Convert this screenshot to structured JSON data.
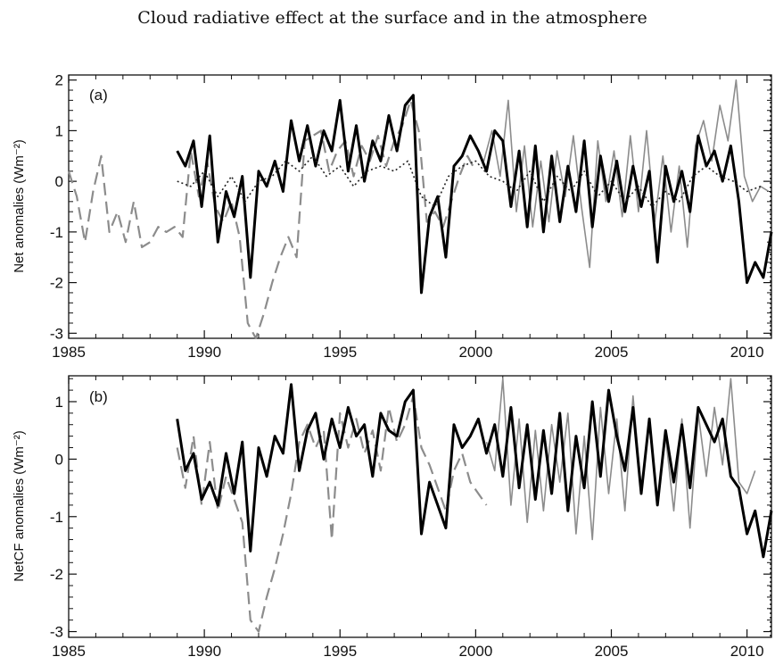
{
  "figure": {
    "title": "Cloud radiative effect at the surface and in the atmosphere"
  },
  "chart_data": [
    {
      "type": "line",
      "panel_label": "(a)",
      "ylabel": "Net anomalies (Wm⁻²)",
      "xlim": [
        1985,
        2010.9
      ],
      "ylim": [
        -3.1,
        2.1
      ],
      "xticks": [
        1985,
        1990,
        1995,
        2000,
        2005,
        2010
      ],
      "yticks": [
        -3,
        -2,
        -1,
        0,
        1,
        2
      ],
      "grid": false,
      "series": [
        {
          "style": "gray-dashed",
          "color": "#8c8c8c",
          "x": [
            1985.0,
            1985.3,
            1985.6,
            1985.9,
            1986.2,
            1986.5,
            1986.8,
            1987.1,
            1987.4,
            1987.7,
            1988.0,
            1988.3,
            1988.6,
            1988.9,
            1989.2,
            1989.5,
            1989.8,
            1990.1,
            1990.4,
            1990.7,
            1991.0,
            1991.3,
            1991.6,
            1991.9,
            1992.2,
            1992.5,
            1992.8,
            1993.1,
            1993.4,
            1993.7,
            1994.0,
            1994.3,
            1994.6,
            1994.9,
            1995.2,
            1995.5,
            1995.8,
            1996.1,
            1996.4,
            1996.7,
            1997.0,
            1997.3,
            1997.6,
            1997.9,
            1998.2,
            1998.5,
            1998.8,
            1999.1,
            1999.4,
            1999.7,
            2000.0
          ],
          "y": [
            0.2,
            -0.3,
            -1.2,
            -0.2,
            0.5,
            -1.0,
            -0.6,
            -1.2,
            -0.4,
            -1.3,
            -1.2,
            -0.9,
            -1.0,
            -0.9,
            -1.1,
            0.6,
            -0.3,
            0.4,
            -0.5,
            -0.8,
            -0.4,
            -1.1,
            -2.8,
            -3.1,
            -2.6,
            -2.0,
            -1.5,
            -1.1,
            -1.5,
            0.8,
            0.9,
            1.0,
            0.2,
            0.6,
            0.8,
            0.1,
            0.7,
            0.4,
            0.9,
            0.3,
            0.8,
            1.1,
            1.6,
            1.0,
            -0.8,
            -0.6,
            -0.9,
            -0.4,
            0.1,
            0.5,
            0.2
          ]
        },
        {
          "style": "gray-thin",
          "color": "#8c8c8c",
          "x": [
            2000.3,
            2000.6,
            2000.9,
            2001.2,
            2001.5,
            2001.8,
            2002.1,
            2002.4,
            2002.7,
            2003.0,
            2003.3,
            2003.6,
            2003.9,
            2004.2,
            2004.5,
            2004.8,
            2005.1,
            2005.4,
            2005.7,
            2006.0,
            2006.3,
            2006.6,
            2006.9,
            2007.2,
            2007.5,
            2007.8,
            2008.1,
            2008.4,
            2008.7,
            2009.0,
            2009.3,
            2009.6,
            2009.9,
            2010.2,
            2010.5,
            2010.8
          ],
          "y": [
            0.4,
            1.0,
            0.1,
            1.6,
            -0.6,
            0.7,
            -0.9,
            0.4,
            -0.8,
            0.6,
            -0.3,
            0.9,
            -0.5,
            -1.7,
            0.8,
            -0.4,
            0.6,
            -0.7,
            0.9,
            -0.6,
            1.0,
            -0.8,
            0.5,
            -1.0,
            0.3,
            -1.3,
            0.7,
            1.2,
            0.4,
            1.5,
            0.8,
            2.0,
            0.1,
            -0.4,
            -0.1,
            -0.2
          ]
        },
        {
          "style": "black-thick",
          "color": "#000000",
          "x": [
            1989.0,
            1989.3,
            1989.6,
            1989.9,
            1990.2,
            1990.5,
            1990.8,
            1991.1,
            1991.4,
            1991.7,
            1992.0,
            1992.3,
            1992.6,
            1992.9,
            1993.2,
            1993.5,
            1993.8,
            1994.1,
            1994.4,
            1994.7,
            1995.0,
            1995.3,
            1995.6,
            1995.9,
            1996.2,
            1996.5,
            1996.8,
            1997.1,
            1997.4,
            1997.7,
            1998.0,
            1998.3,
            1998.6,
            1998.9,
            1999.2,
            1999.5,
            1999.8,
            2000.1,
            2000.4,
            2000.7,
            2001.0,
            2001.3,
            2001.6,
            2001.9,
            2002.2,
            2002.5,
            2002.8,
            2003.1,
            2003.4,
            2003.7,
            2004.0,
            2004.3,
            2004.6,
            2004.9,
            2005.2,
            2005.5,
            2005.8,
            2006.1,
            2006.4,
            2006.7,
            2007.0,
            2007.3,
            2007.6,
            2007.9,
            2008.2,
            2008.5,
            2008.8,
            2009.1,
            2009.4,
            2009.7,
            2010.0,
            2010.3,
            2010.6,
            2010.9
          ],
          "y": [
            0.6,
            0.3,
            0.8,
            -0.5,
            0.9,
            -1.2,
            -0.2,
            -0.7,
            0.1,
            -1.9,
            0.2,
            -0.1,
            0.4,
            -0.2,
            1.2,
            0.4,
            1.1,
            0.3,
            1.0,
            0.6,
            1.6,
            0.2,
            1.1,
            0.0,
            0.8,
            0.4,
            1.3,
            0.6,
            1.5,
            1.7,
            -2.2,
            -0.7,
            -0.3,
            -1.5,
            0.3,
            0.5,
            0.9,
            0.6,
            0.2,
            1.0,
            0.8,
            -0.5,
            0.6,
            -0.9,
            0.7,
            -1.0,
            0.5,
            -0.8,
            0.3,
            -0.6,
            0.8,
            -0.9,
            0.5,
            -0.4,
            0.4,
            -0.6,
            0.3,
            -0.5,
            0.2,
            -1.6,
            0.3,
            -0.4,
            0.2,
            -0.6,
            0.9,
            0.3,
            0.6,
            0.0,
            0.7,
            -0.4,
            -2.0,
            -1.6,
            -1.9,
            -1.0
          ]
        },
        {
          "style": "black-dotted",
          "color": "#222222",
          "x": [
            1989.0,
            1989.5,
            1990.0,
            1990.5,
            1991.0,
            1991.5,
            1992.0,
            1992.5,
            1993.0,
            1993.5,
            1994.0,
            1994.5,
            1995.0,
            1995.5,
            1996.0,
            1996.5,
            1997.0,
            1997.5,
            1998.0,
            1998.5,
            1999.0,
            1999.5,
            2000.0,
            2000.5,
            2001.0,
            2001.5,
            2002.0,
            2002.5,
            2003.0,
            2003.5,
            2004.0,
            2004.5,
            2005.0,
            2005.5,
            2006.0,
            2006.5,
            2007.0,
            2007.5,
            2008.0,
            2008.5,
            2009.0,
            2009.5,
            2010.0,
            2010.5
          ],
          "y": [
            0.0,
            -0.1,
            0.2,
            -0.3,
            0.1,
            -0.4,
            0.0,
            0.1,
            0.4,
            0.2,
            0.5,
            0.1,
            0.3,
            -0.1,
            0.2,
            0.3,
            0.2,
            0.4,
            -0.3,
            -0.5,
            0.1,
            0.3,
            0.4,
            0.1,
            0.0,
            -0.2,
            0.2,
            -0.4,
            0.1,
            -0.2,
            0.2,
            -0.3,
            0.0,
            -0.4,
            -0.1,
            -0.5,
            -0.2,
            -0.4,
            0.1,
            0.3,
            0.1,
            0.0,
            -0.2,
            -0.1
          ]
        }
      ]
    },
    {
      "type": "line",
      "panel_label": "(b)",
      "ylabel": "NetCF anomalies (Wm⁻²)",
      "xlim": [
        1985,
        2010.9
      ],
      "ylim": [
        -3.1,
        1.45
      ],
      "xticks": [
        1985,
        1990,
        1995,
        2000,
        2005,
        2010
      ],
      "yticks": [
        -3,
        -2,
        -1,
        0,
        1
      ],
      "grid": false,
      "series": [
        {
          "style": "gray-dashed",
          "color": "#8c8c8c",
          "x": [
            1989.0,
            1989.3,
            1989.6,
            1989.9,
            1990.2,
            1990.5,
            1990.8,
            1991.1,
            1991.4,
            1991.7,
            1992.0,
            1992.3,
            1992.6,
            1992.9,
            1993.2,
            1993.5,
            1993.8,
            1994.1,
            1994.4,
            1994.7,
            1995.0,
            1995.3,
            1995.6,
            1995.9,
            1996.2,
            1996.5,
            1996.8,
            1997.1,
            1997.4,
            1997.7,
            1998.0,
            1998.3,
            1998.6,
            1998.9,
            1999.2,
            1999.5,
            1999.8,
            2000.1,
            2000.4
          ],
          "y": [
            0.2,
            -0.5,
            0.4,
            -0.8,
            0.3,
            -0.9,
            -0.3,
            -0.7,
            -1.1,
            -2.8,
            -3.0,
            -2.4,
            -1.9,
            -1.3,
            -0.6,
            0.3,
            0.6,
            0.2,
            0.5,
            -1.4,
            0.8,
            0.2,
            0.7,
            0.1,
            0.5,
            -0.2,
            0.9,
            0.3,
            0.6,
            1.1,
            0.2,
            -0.1,
            -0.5,
            -0.9,
            -0.2,
            0.1,
            -0.4,
            -0.6,
            -0.8
          ]
        },
        {
          "style": "gray-thin",
          "color": "#8c8c8c",
          "x": [
            2000.4,
            2000.7,
            2001.0,
            2001.3,
            2001.6,
            2001.9,
            2002.2,
            2002.5,
            2002.8,
            2003.1,
            2003.4,
            2003.7,
            2004.0,
            2004.3,
            2004.6,
            2004.9,
            2005.2,
            2005.5,
            2005.8,
            2006.1,
            2006.4,
            2006.7,
            2007.0,
            2007.3,
            2007.6,
            2007.9,
            2008.2,
            2008.5,
            2008.8,
            2009.1,
            2009.4,
            2009.7,
            2010.0,
            2010.3
          ],
          "y": [
            0.3,
            -0.2,
            1.4,
            -0.8,
            0.7,
            -1.1,
            0.5,
            -0.9,
            0.6,
            -0.4,
            0.8,
            -1.3,
            0.4,
            -1.4,
            0.9,
            -0.6,
            0.7,
            -0.9,
            1.1,
            -0.5,
            0.6,
            -0.8,
            0.4,
            -0.9,
            0.7,
            -1.2,
            0.8,
            -0.3,
            0.9,
            -0.1,
            1.4,
            -0.4,
            -0.6,
            -0.2
          ]
        },
        {
          "style": "black-thick",
          "color": "#000000",
          "x": [
            1989.0,
            1989.3,
            1989.6,
            1989.9,
            1990.2,
            1990.5,
            1990.8,
            1991.1,
            1991.4,
            1991.7,
            1992.0,
            1992.3,
            1992.6,
            1992.9,
            1993.2,
            1993.5,
            1993.8,
            1994.1,
            1994.4,
            1994.7,
            1995.0,
            1995.3,
            1995.6,
            1995.9,
            1996.2,
            1996.5,
            1996.8,
            1997.1,
            1997.4,
            1997.7,
            1998.0,
            1998.3,
            1998.6,
            1998.9,
            1999.2,
            1999.5,
            1999.8,
            2000.1,
            2000.4,
            2000.7,
            2001.0,
            2001.3,
            2001.6,
            2001.9,
            2002.2,
            2002.5,
            2002.8,
            2003.1,
            2003.4,
            2003.7,
            2004.0,
            2004.3,
            2004.6,
            2004.9,
            2005.2,
            2005.5,
            2005.8,
            2006.1,
            2006.4,
            2006.7,
            2007.0,
            2007.3,
            2007.6,
            2007.9,
            2008.2,
            2008.5,
            2008.8,
            2009.1,
            2009.4,
            2009.7,
            2010.0,
            2010.3,
            2010.6,
            2010.9
          ],
          "y": [
            0.7,
            -0.2,
            0.1,
            -0.7,
            -0.4,
            -0.8,
            0.1,
            -0.6,
            0.3,
            -1.6,
            0.2,
            -0.3,
            0.4,
            0.1,
            1.3,
            -0.2,
            0.5,
            0.8,
            0.0,
            0.7,
            0.2,
            0.9,
            0.4,
            0.6,
            -0.3,
            0.8,
            0.5,
            0.4,
            1.0,
            1.2,
            -1.3,
            -0.4,
            -0.8,
            -1.2,
            0.6,
            0.2,
            0.4,
            0.7,
            0.1,
            0.6,
            -0.3,
            0.9,
            -0.5,
            0.6,
            -0.7,
            0.5,
            -0.6,
            0.8,
            -0.9,
            0.4,
            -0.5,
            1.0,
            -0.3,
            1.2,
            0.4,
            -0.2,
            0.9,
            -0.6,
            0.7,
            -0.8,
            0.5,
            -0.4,
            0.6,
            -0.5,
            0.9,
            0.6,
            0.3,
            0.7,
            -0.3,
            -0.5,
            -1.3,
            -0.9,
            -1.7,
            -0.9
          ]
        }
      ]
    }
  ]
}
